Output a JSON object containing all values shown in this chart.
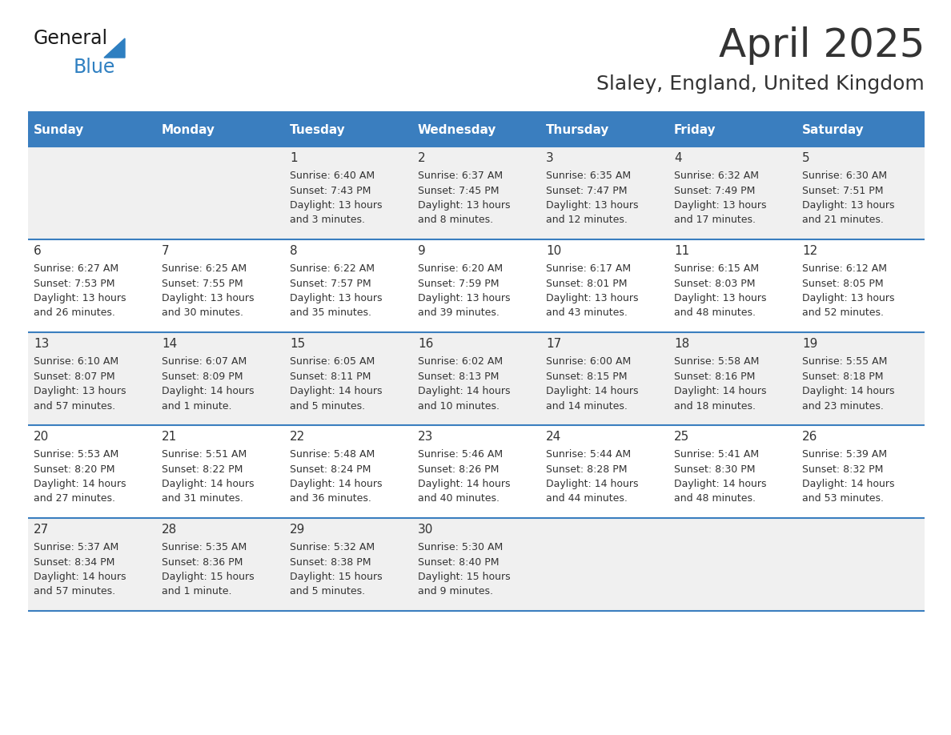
{
  "title": "April 2025",
  "subtitle": "Slaley, England, United Kingdom",
  "header_bg_color": "#3A7EBF",
  "header_text_color": "#FFFFFF",
  "cell_bg_color_odd": "#F0F0F0",
  "cell_bg_color_even": "#FFFFFF",
  "cell_text_color": "#333333",
  "day_number_color": "#333333",
  "border_color": "#3A7EBF",
  "separator_color": "#3A7EBF",
  "days_of_week": [
    "Sunday",
    "Monday",
    "Tuesday",
    "Wednesday",
    "Thursday",
    "Friday",
    "Saturday"
  ],
  "weeks": [
    [
      {
        "day": "",
        "info": ""
      },
      {
        "day": "",
        "info": ""
      },
      {
        "day": "1",
        "info": "Sunrise: 6:40 AM\nSunset: 7:43 PM\nDaylight: 13 hours\nand 3 minutes."
      },
      {
        "day": "2",
        "info": "Sunrise: 6:37 AM\nSunset: 7:45 PM\nDaylight: 13 hours\nand 8 minutes."
      },
      {
        "day": "3",
        "info": "Sunrise: 6:35 AM\nSunset: 7:47 PM\nDaylight: 13 hours\nand 12 minutes."
      },
      {
        "day": "4",
        "info": "Sunrise: 6:32 AM\nSunset: 7:49 PM\nDaylight: 13 hours\nand 17 minutes."
      },
      {
        "day": "5",
        "info": "Sunrise: 6:30 AM\nSunset: 7:51 PM\nDaylight: 13 hours\nand 21 minutes."
      }
    ],
    [
      {
        "day": "6",
        "info": "Sunrise: 6:27 AM\nSunset: 7:53 PM\nDaylight: 13 hours\nand 26 minutes."
      },
      {
        "day": "7",
        "info": "Sunrise: 6:25 AM\nSunset: 7:55 PM\nDaylight: 13 hours\nand 30 minutes."
      },
      {
        "day": "8",
        "info": "Sunrise: 6:22 AM\nSunset: 7:57 PM\nDaylight: 13 hours\nand 35 minutes."
      },
      {
        "day": "9",
        "info": "Sunrise: 6:20 AM\nSunset: 7:59 PM\nDaylight: 13 hours\nand 39 minutes."
      },
      {
        "day": "10",
        "info": "Sunrise: 6:17 AM\nSunset: 8:01 PM\nDaylight: 13 hours\nand 43 minutes."
      },
      {
        "day": "11",
        "info": "Sunrise: 6:15 AM\nSunset: 8:03 PM\nDaylight: 13 hours\nand 48 minutes."
      },
      {
        "day": "12",
        "info": "Sunrise: 6:12 AM\nSunset: 8:05 PM\nDaylight: 13 hours\nand 52 minutes."
      }
    ],
    [
      {
        "day": "13",
        "info": "Sunrise: 6:10 AM\nSunset: 8:07 PM\nDaylight: 13 hours\nand 57 minutes."
      },
      {
        "day": "14",
        "info": "Sunrise: 6:07 AM\nSunset: 8:09 PM\nDaylight: 14 hours\nand 1 minute."
      },
      {
        "day": "15",
        "info": "Sunrise: 6:05 AM\nSunset: 8:11 PM\nDaylight: 14 hours\nand 5 minutes."
      },
      {
        "day": "16",
        "info": "Sunrise: 6:02 AM\nSunset: 8:13 PM\nDaylight: 14 hours\nand 10 minutes."
      },
      {
        "day": "17",
        "info": "Sunrise: 6:00 AM\nSunset: 8:15 PM\nDaylight: 14 hours\nand 14 minutes."
      },
      {
        "day": "18",
        "info": "Sunrise: 5:58 AM\nSunset: 8:16 PM\nDaylight: 14 hours\nand 18 minutes."
      },
      {
        "day": "19",
        "info": "Sunrise: 5:55 AM\nSunset: 8:18 PM\nDaylight: 14 hours\nand 23 minutes."
      }
    ],
    [
      {
        "day": "20",
        "info": "Sunrise: 5:53 AM\nSunset: 8:20 PM\nDaylight: 14 hours\nand 27 minutes."
      },
      {
        "day": "21",
        "info": "Sunrise: 5:51 AM\nSunset: 8:22 PM\nDaylight: 14 hours\nand 31 minutes."
      },
      {
        "day": "22",
        "info": "Sunrise: 5:48 AM\nSunset: 8:24 PM\nDaylight: 14 hours\nand 36 minutes."
      },
      {
        "day": "23",
        "info": "Sunrise: 5:46 AM\nSunset: 8:26 PM\nDaylight: 14 hours\nand 40 minutes."
      },
      {
        "day": "24",
        "info": "Sunrise: 5:44 AM\nSunset: 8:28 PM\nDaylight: 14 hours\nand 44 minutes."
      },
      {
        "day": "25",
        "info": "Sunrise: 5:41 AM\nSunset: 8:30 PM\nDaylight: 14 hours\nand 48 minutes."
      },
      {
        "day": "26",
        "info": "Sunrise: 5:39 AM\nSunset: 8:32 PM\nDaylight: 14 hours\nand 53 minutes."
      }
    ],
    [
      {
        "day": "27",
        "info": "Sunrise: 5:37 AM\nSunset: 8:34 PM\nDaylight: 14 hours\nand 57 minutes."
      },
      {
        "day": "28",
        "info": "Sunrise: 5:35 AM\nSunset: 8:36 PM\nDaylight: 15 hours\nand 1 minute."
      },
      {
        "day": "29",
        "info": "Sunrise: 5:32 AM\nSunset: 8:38 PM\nDaylight: 15 hours\nand 5 minutes."
      },
      {
        "day": "30",
        "info": "Sunrise: 5:30 AM\nSunset: 8:40 PM\nDaylight: 15 hours\nand 9 minutes."
      },
      {
        "day": "",
        "info": ""
      },
      {
        "day": "",
        "info": ""
      },
      {
        "day": "",
        "info": ""
      }
    ]
  ],
  "logo_text_general": "General",
  "logo_text_blue": "Blue",
  "logo_color_general": "#1a1a1a",
  "logo_color_blue": "#2E7FC1",
  "logo_triangle_color": "#2E7FC1",
  "title_fontsize": 36,
  "subtitle_fontsize": 18,
  "header_fontsize": 11,
  "day_num_fontsize": 11,
  "info_fontsize": 9
}
